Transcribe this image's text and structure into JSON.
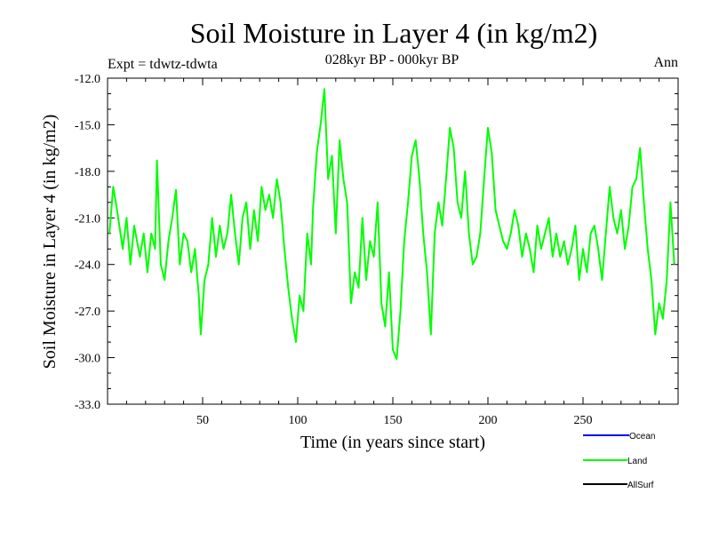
{
  "chart_data": {
    "type": "line",
    "title": "Soil Moisture in Layer 4 (in kg/m2)",
    "subtitle": "028kyr BP - 000kyr BP",
    "expt_label": "Expt = tdwtz-tdwta",
    "season_label": "Ann",
    "xlabel": "Time (in years since start)",
    "ylabel": "Soil Moisture in Layer 4 (in kg/m2)",
    "xlim": [
      0,
      300
    ],
    "ylim": [
      -33.0,
      -12.0
    ],
    "x_ticks": [
      50,
      100,
      150,
      200,
      250
    ],
    "x_tick_labels": [
      "50",
      "100",
      "150",
      "200",
      "250"
    ],
    "y_ticks": [
      -33.0,
      -30.0,
      -27.0,
      -24.0,
      -21.0,
      -18.0,
      -15.0,
      -12.0
    ],
    "y_tick_labels": [
      "-33.0",
      "-30.0",
      "-27.0",
      "-24.0",
      "-21.0",
      "-18.0",
      "-15.0",
      "-12.0"
    ],
    "legend_position": "bottom-right",
    "series": [
      {
        "name": "Ocean",
        "color": "#0000ff",
        "values": []
      },
      {
        "name": "Land",
        "color": "#00ff00",
        "x": [
          1,
          3,
          5,
          8,
          10,
          12,
          14,
          17,
          19,
          21,
          23,
          25,
          26,
          28,
          30,
          32,
          34,
          36,
          38,
          40,
          42,
          44,
          46,
          48,
          49,
          51,
          53,
          55,
          57,
          59,
          61,
          63,
          65,
          67,
          69,
          71,
          73,
          75,
          77,
          79,
          81,
          83,
          85,
          87,
          89,
          91,
          93,
          95,
          97,
          99,
          101,
          103,
          105,
          107,
          108,
          110,
          112,
          114,
          116,
          118,
          120,
          122,
          124,
          126,
          128,
          130,
          132,
          134,
          136,
          138,
          140,
          142,
          144,
          146,
          148,
          150,
          152,
          154,
          156,
          158,
          160,
          162,
          164,
          166,
          168,
          170,
          172,
          174,
          176,
          178,
          180,
          182,
          184,
          186,
          188,
          190,
          192,
          194,
          196,
          198,
          200,
          202,
          204,
          206,
          208,
          210,
          212,
          214,
          216,
          218,
          220,
          222,
          224,
          226,
          228,
          230,
          232,
          234,
          236,
          238,
          240,
          242,
          244,
          246,
          248,
          250,
          252,
          254,
          256,
          258,
          260,
          262,
          264,
          266,
          268,
          270,
          272,
          274,
          276,
          278,
          280,
          282,
          284,
          286,
          288,
          290,
          292,
          294,
          296,
          298
        ],
        "values": [
          -22.0,
          -19.0,
          -20.5,
          -23.0,
          -21.0,
          -24.0,
          -21.5,
          -23.5,
          -22.0,
          -24.5,
          -22.0,
          -23.0,
          -17.3,
          -24.0,
          -25.0,
          -22.5,
          -21.0,
          -19.2,
          -24.0,
          -22.0,
          -22.5,
          -24.5,
          -23.0,
          -26.0,
          -28.5,
          -25.0,
          -24.0,
          -21.0,
          -23.5,
          -21.5,
          -23.0,
          -22.0,
          -19.5,
          -22.0,
          -24.0,
          -21.0,
          -20.0,
          -23.0,
          -20.5,
          -22.5,
          -19.0,
          -20.5,
          -19.5,
          -21.0,
          -18.5,
          -20.0,
          -23.0,
          -25.5,
          -27.5,
          -29.0,
          -26.0,
          -27.0,
          -22.0,
          -24.0,
          -20.5,
          -16.8,
          -15.0,
          -12.7,
          -18.5,
          -17.0,
          -22.0,
          -16.0,
          -18.5,
          -20.0,
          -26.5,
          -24.5,
          -25.5,
          -21.0,
          -25.0,
          -22.5,
          -23.5,
          -20.0,
          -26.5,
          -28.0,
          -24.5,
          -29.5,
          -30.1,
          -27.0,
          -22.5,
          -20.0,
          -17.0,
          -16.0,
          -18.5,
          -22.0,
          -24.5,
          -28.5,
          -22.0,
          -20.0,
          -21.5,
          -18.5,
          -15.2,
          -16.5,
          -20.0,
          -21.0,
          -18.0,
          -22.0,
          -24.0,
          -23.5,
          -22.0,
          -18.5,
          -15.2,
          -16.8,
          -20.5,
          -21.5,
          -22.5,
          -23.0,
          -22.0,
          -20.5,
          -21.5,
          -23.5,
          -22.0,
          -23.0,
          -24.5,
          -21.5,
          -23.0,
          -22.0,
          -21.0,
          -23.5,
          -22.0,
          -23.5,
          -22.5,
          -24.0,
          -23.0,
          -21.5,
          -25.0,
          -23.0,
          -24.5,
          -22.0,
          -21.5,
          -23.0,
          -25.0,
          -22.0,
          -19.0,
          -21.0,
          -22.0,
          -20.5,
          -23.0,
          -21.5,
          -19.0,
          -18.5,
          -16.5,
          -20.0,
          -23.0,
          -25.0,
          -28.5,
          -26.5,
          -27.5,
          -25.0,
          -20.0,
          -24.0
        ]
      },
      {
        "name": "AllSurf",
        "color": "#000000",
        "values": []
      }
    ]
  }
}
